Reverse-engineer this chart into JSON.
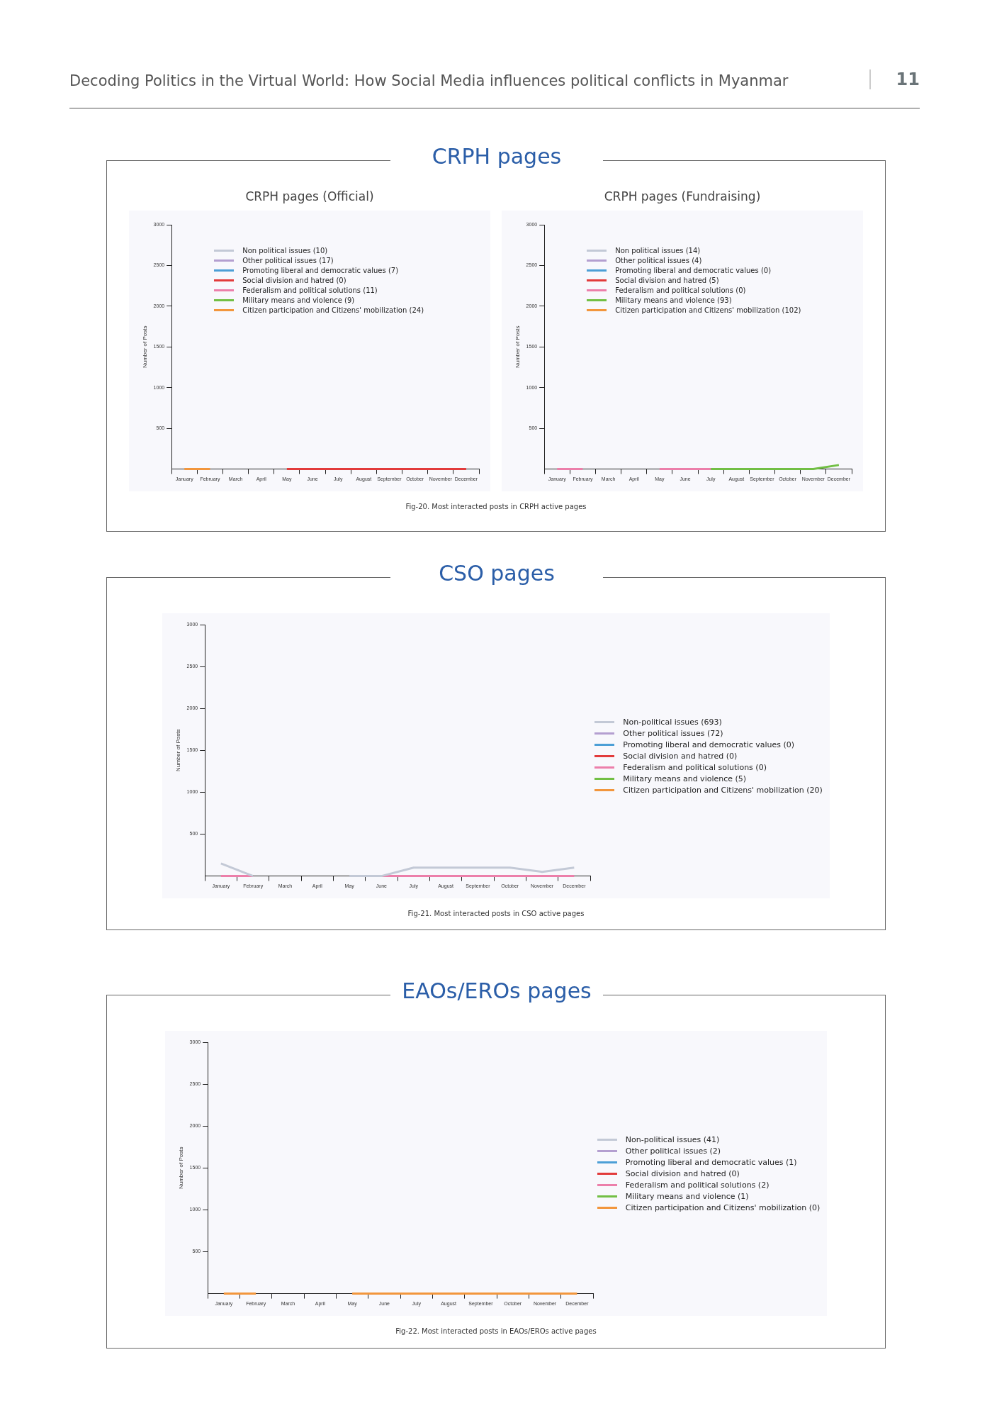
{
  "chart_data": [
    {
      "type": "line",
      "title": "CRPH pages",
      "subtitle": "CRPH pages (Official)",
      "annotations": [
        "Decoding Politics in the Virtual World: How Social Media influences political conflicts in Myanmar",
        "11"
      ],
      "ylabel": "Number of Posts",
      "categories": [
        "January",
        "February",
        "March",
        "April",
        "May",
        "June",
        "July",
        "August",
        "September",
        "October",
        "November",
        "December"
      ],
      "ylim": [
        0,
        3000
      ],
      "yticks": [
        500,
        1000,
        1500,
        2000,
        2500,
        3000
      ],
      "legend": "top left",
      "series": [
        {
          "name": "Non political issues (10)",
          "color": "#c3c9d6",
          "values": [
            null,
            null,
            null,
            null,
            null,
            null,
            null,
            null,
            null,
            null,
            null,
            null
          ]
        },
        {
          "name": "Other political issues (17)",
          "color": "#b49fd0",
          "values": [
            null,
            null,
            null,
            null,
            null,
            null,
            null,
            null,
            null,
            null,
            null,
            null
          ]
        },
        {
          "name": "Promoting liberal and democratic values (7)",
          "color": "#4c9fd6",
          "values": [
            null,
            null,
            null,
            null,
            null,
            null,
            null,
            null,
            null,
            null,
            null,
            null
          ]
        },
        {
          "name": "Social division and hatred (0)",
          "color": "#e23b3b",
          "values": [
            null,
            null,
            null,
            null,
            0,
            0,
            0,
            0,
            0,
            0,
            0,
            0
          ]
        },
        {
          "name": "Federalism and political solutions (11)",
          "color": "#ec7faa",
          "values": [
            null,
            null,
            null,
            null,
            null,
            null,
            null,
            null,
            null,
            null,
            null,
            null
          ]
        },
        {
          "name": "Military means and violence (9)",
          "color": "#72bf44",
          "values": [
            null,
            null,
            null,
            null,
            null,
            null,
            null,
            null,
            null,
            null,
            null,
            null
          ]
        },
        {
          "name": "Citizen participation and Citizens' mobilization (24)",
          "color": "#f2963c",
          "values": [
            0,
            0,
            null,
            null,
            null,
            null,
            null,
            null,
            null,
            null,
            null,
            null
          ]
        }
      ]
    },
    {
      "type": "line",
      "subtitle": "CRPH pages (Fundraising)",
      "annotations": [
        "Fig-20. Most interacted posts in CRPH active pages"
      ],
      "ylabel": "Number of Posts",
      "categories": [
        "January",
        "February",
        "March",
        "April",
        "May",
        "June",
        "July",
        "August",
        "September",
        "October",
        "November",
        "December"
      ],
      "ylim": [
        0,
        3000
      ],
      "yticks": [
        500,
        1000,
        1500,
        2000,
        2500,
        3000
      ],
      "legend": "top left",
      "series": [
        {
          "name": "Non political issues (14)",
          "color": "#c3c9d6",
          "values": [
            null,
            null,
            null,
            null,
            null,
            null,
            null,
            null,
            null,
            null,
            null,
            null
          ]
        },
        {
          "name": "Other political issues (4)",
          "color": "#b49fd0",
          "values": [
            null,
            null,
            null,
            null,
            null,
            null,
            null,
            null,
            null,
            null,
            null,
            null
          ]
        },
        {
          "name": "Promoting liberal and democratic values (0)",
          "color": "#4c9fd6",
          "values": [
            null,
            null,
            null,
            null,
            null,
            null,
            null,
            null,
            null,
            null,
            null,
            null
          ]
        },
        {
          "name": "Social division and hatred (5)",
          "color": "#e23b3b",
          "values": [
            null,
            null,
            null,
            null,
            null,
            null,
            null,
            null,
            null,
            null,
            null,
            null
          ]
        },
        {
          "name": "Federalism and political solutions (0)",
          "color": "#ec7faa",
          "values": [
            0,
            0,
            null,
            null,
            0,
            0,
            0,
            null,
            null,
            null,
            null,
            null
          ]
        },
        {
          "name": "Military means and violence (93)",
          "color": "#72bf44",
          "values": [
            null,
            null,
            null,
            null,
            null,
            null,
            0,
            0,
            0,
            0,
            0,
            50
          ]
        },
        {
          "name": "Citizen participation and Citizens' mobilization (102)",
          "color": "#f2963c",
          "values": [
            null,
            null,
            null,
            null,
            null,
            null,
            null,
            null,
            null,
            null,
            null,
            null
          ]
        }
      ]
    },
    {
      "type": "line",
      "title": "CSO pages",
      "annotations": [
        "Fig-21. Most interacted posts in CSO active pages"
      ],
      "ylabel": "Number of Posts",
      "categories": [
        "January",
        "February",
        "March",
        "April",
        "May",
        "June",
        "July",
        "August",
        "September",
        "October",
        "November",
        "December"
      ],
      "ylim": [
        0,
        3000
      ],
      "yticks": [
        500,
        1000,
        1500,
        2000,
        2500,
        3000
      ],
      "legend": "right",
      "series": [
        {
          "name": "Non-political issues (693)",
          "color": "#c3c9d6",
          "values": [
            150,
            0,
            null,
            null,
            0,
            0,
            100,
            100,
            100,
            100,
            50,
            100
          ]
        },
        {
          "name": "Other political issues (72)",
          "color": "#b49fd0",
          "values": [
            null,
            null,
            null,
            null,
            null,
            null,
            null,
            null,
            null,
            null,
            null,
            null
          ]
        },
        {
          "name": "Promoting liberal and democratic values (0)",
          "color": "#4c9fd6",
          "values": [
            null,
            null,
            null,
            null,
            null,
            null,
            null,
            null,
            null,
            null,
            null,
            null
          ]
        },
        {
          "name": "Social division and hatred (0)",
          "color": "#e23b3b",
          "values": [
            null,
            null,
            null,
            null,
            null,
            null,
            null,
            null,
            null,
            null,
            null,
            null
          ]
        },
        {
          "name": "Federalism and political solutions (0)",
          "color": "#ec7faa",
          "values": [
            0,
            0,
            null,
            null,
            null,
            0,
            0,
            0,
            0,
            0,
            0,
            0
          ]
        },
        {
          "name": "Military means and violence (5)",
          "color": "#72bf44",
          "values": [
            null,
            null,
            null,
            null,
            null,
            null,
            null,
            null,
            null,
            null,
            null,
            null
          ]
        },
        {
          "name": "Citizen participation and Citizens' mobilization (20)",
          "color": "#f2963c",
          "values": [
            null,
            null,
            null,
            null,
            null,
            null,
            null,
            null,
            null,
            null,
            null,
            null
          ]
        }
      ]
    },
    {
      "type": "line",
      "title": "EAOs/EROs pages",
      "annotations": [
        "Fig-22. Most interacted posts in EAOs/EROs active pages"
      ],
      "ylabel": "Number of Posts",
      "categories": [
        "January",
        "February",
        "March",
        "April",
        "May",
        "June",
        "July",
        "August",
        "September",
        "October",
        "November",
        "December"
      ],
      "ylim": [
        0,
        3000
      ],
      "yticks": [
        500,
        1000,
        1500,
        2000,
        2500,
        3000
      ],
      "legend": "right",
      "series": [
        {
          "name": "Non-political issues (41)",
          "color": "#c3c9d6",
          "values": [
            null,
            null,
            null,
            null,
            null,
            null,
            null,
            null,
            null,
            null,
            null,
            null
          ]
        },
        {
          "name": "Other political issues (2)",
          "color": "#b49fd0",
          "values": [
            null,
            null,
            null,
            null,
            null,
            null,
            null,
            null,
            null,
            null,
            null,
            null
          ]
        },
        {
          "name": "Promoting liberal and democratic values (1)",
          "color": "#4c9fd6",
          "values": [
            null,
            null,
            null,
            null,
            null,
            null,
            null,
            null,
            null,
            null,
            null,
            null
          ]
        },
        {
          "name": "Social division and hatred (0)",
          "color": "#e23b3b",
          "values": [
            null,
            null,
            null,
            null,
            null,
            null,
            null,
            null,
            null,
            null,
            null,
            null
          ]
        },
        {
          "name": "Federalism and political solutions (2)",
          "color": "#ec7faa",
          "values": [
            null,
            null,
            null,
            null,
            null,
            null,
            null,
            null,
            null,
            null,
            null,
            null
          ]
        },
        {
          "name": "Military means and violence (1)",
          "color": "#72bf44",
          "values": [
            null,
            null,
            null,
            null,
            null,
            null,
            null,
            null,
            null,
            null,
            null,
            null
          ]
        },
        {
          "name": "Citizen participation and Citizens' mobilization (0)",
          "color": "#f2963c",
          "values": [
            0,
            0,
            null,
            null,
            0,
            0,
            0,
            0,
            0,
            0,
            0,
            0
          ]
        }
      ]
    }
  ]
}
